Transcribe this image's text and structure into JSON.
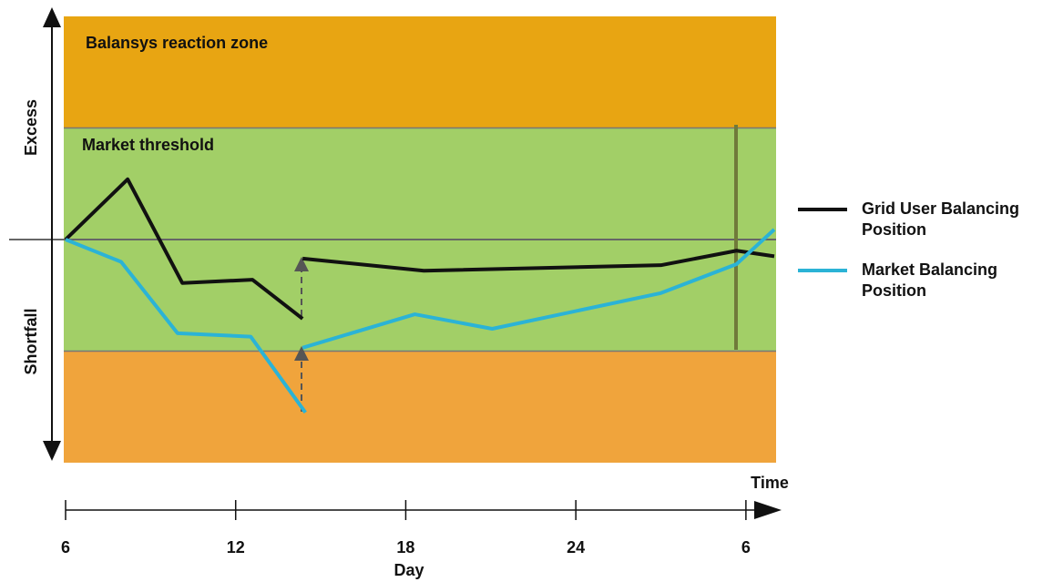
{
  "chart_data": {
    "type": "line",
    "annotations": [
      "Balansys reaction zone",
      "Market threshold"
    ],
    "ylabel_top": "Excess",
    "ylabel_bottom": "Shortfall",
    "xlabel": "Day",
    "x_axis_title": "Time",
    "xlim": [
      6,
      31
    ],
    "ylim": [
      -2,
      2
    ],
    "xticks": [
      6,
      12,
      18,
      24,
      {
        "value": 30,
        "label": "6"
      }
    ],
    "thresholds": [
      -1,
      1
    ],
    "series": [
      {
        "name": "Grid User Balancing Position",
        "color": "#111111",
        "x": [
          6,
          8.19,
          10.12,
          12.59,
          14.36,
          null,
          14.36,
          18.64,
          27.0,
          29.67,
          31
        ],
        "values": [
          0,
          0.54,
          -0.39,
          -0.36,
          -0.71,
          null,
          -0.17,
          -0.28,
          -0.23,
          -0.1,
          -0.15
        ]
      },
      {
        "name": "Market Balancing Position",
        "color": "#2bb3d6",
        "x": [
          6,
          7.96,
          9.95,
          12.53,
          14.46,
          null,
          14.36,
          18.32,
          21.05,
          27.0,
          29.67,
          31
        ],
        "values": [
          0,
          -0.2,
          -0.84,
          -0.87,
          -1.55,
          null,
          -0.97,
          -0.67,
          -0.8,
          -0.48,
          -0.22,
          0.09
        ]
      }
    ]
  }
}
